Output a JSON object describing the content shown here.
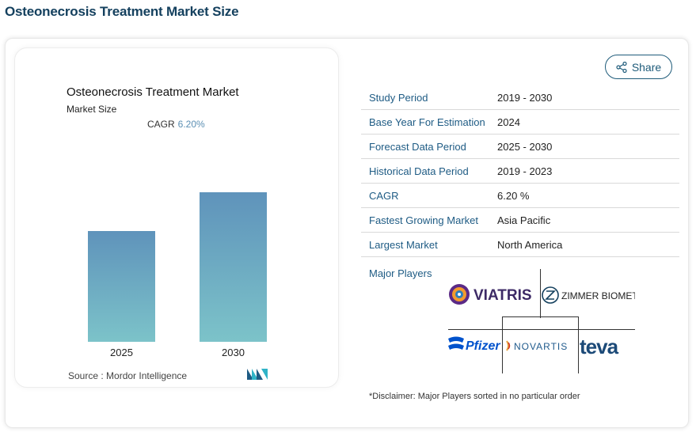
{
  "header": {
    "title": "Osteonecrosis Treatment Market Size"
  },
  "chart": {
    "title": "Osteonecrosis Treatment Market",
    "subtitle": "Market Size",
    "cagr_label": "CAGR",
    "cagr_value": "6.20%",
    "source": "Source :  Mordor Intelligence"
  },
  "chart_data": {
    "type": "bar",
    "categories": [
      "2025",
      "2030"
    ],
    "values": [
      1.0,
      1.35
    ],
    "title": "Osteonecrosis Treatment Market",
    "subtitle": "Market Size",
    "ylim": [
      0,
      1.5
    ],
    "grid": false
  },
  "share": {
    "label": "Share"
  },
  "info_table": [
    {
      "label": "Study Period",
      "value": "2019 - 2030"
    },
    {
      "label": "Base Year For Estimation",
      "value": "2024"
    },
    {
      "label": "Forecast Data Period",
      "value": "2025 - 2030"
    },
    {
      "label": "Historical Data Period",
      "value": "2019 - 2023"
    },
    {
      "label": "CAGR",
      "value": "6.20 %"
    },
    {
      "label": "Fastest Growing Market",
      "value": "Asia Pacific"
    },
    {
      "label": "Largest Market",
      "value": "North America"
    }
  ],
  "players": {
    "label": "Major Players",
    "logos": [
      "VIATRIS",
      "ZIMMER BIOMET",
      "Pfizer",
      "NOVARTIS",
      "teva"
    ]
  },
  "disclaimer": "*Disclaimer: Major Players sorted in no particular order",
  "colors": {
    "brand": "#14405e",
    "accent": "#1e5b84",
    "bar_top": "#5f93bb",
    "bar_bottom": "#7cc3c9"
  }
}
